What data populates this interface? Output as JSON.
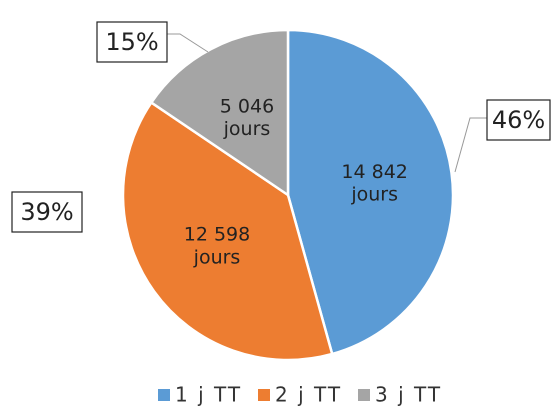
{
  "chart_data": {
    "type": "pie",
    "categories": [
      "1 j TT",
      "2 j TT",
      "3 j TT"
    ],
    "values": [
      14842,
      12598,
      5046
    ],
    "value_labels": [
      "14 842 jours",
      "12 598 jours",
      "5 046 jours"
    ],
    "percentages": [
      46,
      39,
      15
    ],
    "percentage_labels": [
      "46%",
      "39%",
      "15%"
    ],
    "colors": [
      "#5b9bd5",
      "#ed7d31",
      "#a5a5a5"
    ],
    "legend": "bottom"
  }
}
